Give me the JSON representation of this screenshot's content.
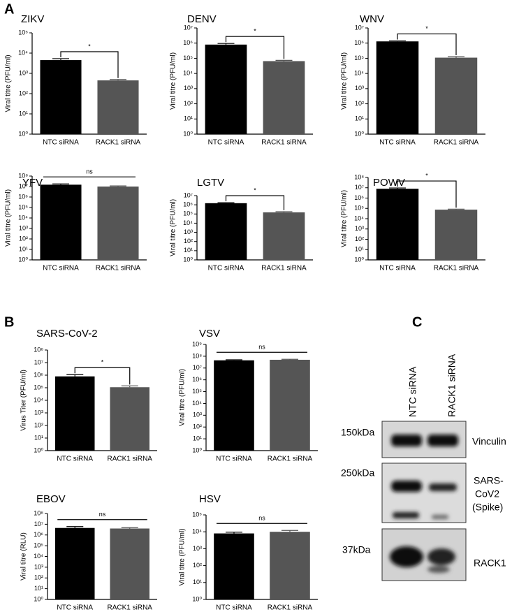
{
  "panel_labels": [
    "A",
    "B",
    "C"
  ],
  "blot": {
    "lanes": [
      "NTC siRNA",
      "RACK1 siRNA"
    ],
    "markers": [
      "150kDa",
      "250kDa",
      "37kDa"
    ],
    "proteins": [
      [
        "Vinculin"
      ],
      [
        "SARS-",
        "CoV2",
        "(Spike)"
      ],
      [
        "RACK1"
      ]
    ]
  },
  "chart_data": [
    {
      "type": "bar",
      "title": "ZIKV",
      "y_label": "Viral titre (PFU/ml)",
      "categories": [
        "NTC siRNA",
        "RACK1 siRNA"
      ],
      "values": [
        4500,
        450
      ],
      "errors": [
        800,
        50
      ],
      "colors": [
        "#000000",
        "#555555"
      ],
      "annotation": "*",
      "log_scale": true,
      "ylim": [
        1,
        100000
      ],
      "yticks": [
        {
          "value": 1,
          "label": "10⁰"
        },
        {
          "value": 10,
          "label": "10¹"
        },
        {
          "value": 100,
          "label": "10²"
        },
        {
          "value": 1000,
          "label": "10³"
        },
        {
          "value": 10000,
          "label": "10⁴"
        },
        {
          "value": 100000,
          "label": "10⁵"
        }
      ]
    },
    {
      "type": "bar",
      "title": "DENV",
      "y_label": "Viral titre (PFU/ml)",
      "categories": [
        "NTC siRNA",
        "RACK1 siRNA"
      ],
      "values": [
        800000,
        65000
      ],
      "errors": [
        150000,
        8000
      ],
      "colors": [
        "#000000",
        "#555555"
      ],
      "annotation": "*",
      "log_scale": true,
      "ylim": [
        1,
        10000000
      ],
      "yticks": [
        {
          "value": 1,
          "label": "10⁰"
        },
        {
          "value": 10,
          "label": "10¹"
        },
        {
          "value": 100,
          "label": "10²"
        },
        {
          "value": 1000,
          "label": "10³"
        },
        {
          "value": 10000,
          "label": "10⁴"
        },
        {
          "value": 100000,
          "label": "10⁵"
        },
        {
          "value": 1000000,
          "label": "10⁶"
        },
        {
          "value": 10000000,
          "label": "10⁷"
        }
      ]
    },
    {
      "type": "bar",
      "title": "WNV",
      "y_label": "Viral titre (PFU/ml)",
      "categories": [
        "NTC siRNA",
        "RACK1 siRNA"
      ],
      "values": [
        1300000,
        110000
      ],
      "errors": [
        100000,
        20000
      ],
      "colors": [
        "#000000",
        "#555555"
      ],
      "annotation": "*",
      "log_scale": true,
      "ylim": [
        1,
        10000000
      ],
      "yticks": [
        {
          "value": 1,
          "label": "10⁰"
        },
        {
          "value": 10,
          "label": "10¹"
        },
        {
          "value": 100,
          "label": "10²"
        },
        {
          "value": 1000,
          "label": "10³"
        },
        {
          "value": 10000,
          "label": "10⁴"
        },
        {
          "value": 100000,
          "label": "10⁵"
        },
        {
          "value": 1000000,
          "label": "10⁶"
        },
        {
          "value": 10000000,
          "label": "10⁷"
        }
      ]
    },
    {
      "type": "bar",
      "title": "YFV",
      "y_label": "Viral titre (PFU/ml)",
      "categories": [
        "NTC siRNA",
        "RACK1 siRNA"
      ],
      "values": [
        15000000,
        10000000
      ],
      "errors": [
        3000000,
        1500000
      ],
      "colors": [
        "#000000",
        "#555555"
      ],
      "annotation": "ns",
      "log_scale": true,
      "ylim": [
        1,
        100000000
      ],
      "yticks": [
        {
          "value": 1,
          "label": "10⁰"
        },
        {
          "value": 10,
          "label": "10¹"
        },
        {
          "value": 100,
          "label": "10²"
        },
        {
          "value": 1000,
          "label": "10³"
        },
        {
          "value": 10000,
          "label": "10⁴"
        },
        {
          "value": 100000,
          "label": "10⁵"
        },
        {
          "value": 1000000,
          "label": "10⁶"
        },
        {
          "value": 10000000,
          "label": "10⁷"
        },
        {
          "value": 100000000,
          "label": "10⁸"
        }
      ]
    },
    {
      "type": "bar",
      "title": "LGTV",
      "y_label": "Viral titre (PFU/ml)",
      "categories": [
        "NTC siRNA",
        "RACK1 siRNA"
      ],
      "values": [
        1500000,
        150000
      ],
      "errors": [
        200000,
        30000
      ],
      "colors": [
        "#000000",
        "#555555"
      ],
      "annotation": "*",
      "log_scale": true,
      "ylim": [
        1,
        10000000
      ],
      "yticks": [
        {
          "value": 1,
          "label": "10⁰"
        },
        {
          "value": 10,
          "label": "10¹"
        },
        {
          "value": 100,
          "label": "10²"
        },
        {
          "value": 1000,
          "label": "10³"
        },
        {
          "value": 10000,
          "label": "10⁴"
        },
        {
          "value": 100000,
          "label": "10⁵"
        },
        {
          "value": 1000000,
          "label": "10⁶"
        },
        {
          "value": 10000000,
          "label": "10⁷"
        }
      ]
    },
    {
      "type": "bar",
      "title": "POWV",
      "y_label": "Viral titre (PFU/ml)",
      "categories": [
        "NTC siRNA",
        "RACK1 siRNA"
      ],
      "values": [
        8000000,
        75000
      ],
      "errors": [
        1500000,
        10000
      ],
      "colors": [
        "#000000",
        "#555555"
      ],
      "annotation": "*",
      "log_scale": true,
      "ylim": [
        1,
        100000000
      ],
      "yticks": [
        {
          "value": 1,
          "label": "10⁰"
        },
        {
          "value": 10,
          "label": "10¹"
        },
        {
          "value": 100,
          "label": "10²"
        },
        {
          "value": 1000,
          "label": "10³"
        },
        {
          "value": 10000,
          "label": "10⁴"
        },
        {
          "value": 100000,
          "label": "10⁵"
        },
        {
          "value": 1000000,
          "label": "10⁶"
        },
        {
          "value": 10000000,
          "label": "10⁷"
        },
        {
          "value": 100000000,
          "label": "10⁸"
        }
      ]
    },
    {
      "type": "bar",
      "title": "SARS-CoV-2",
      "y_label": "Virus Titer (PFU/ml)",
      "categories": [
        "NTC siRNA",
        "RACK1 siRNA"
      ],
      "values": [
        800000,
        110000
      ],
      "errors": [
        300000,
        30000
      ],
      "colors": [
        "#000000",
        "#555555"
      ],
      "annotation": "*",
      "log_scale": true,
      "ylim": [
        1,
        100000000
      ],
      "yticks": [
        {
          "value": 1,
          "label": "10⁰"
        },
        {
          "value": 10,
          "label": "10¹"
        },
        {
          "value": 100,
          "label": "10²"
        },
        {
          "value": 1000,
          "label": "10³"
        },
        {
          "value": 10000,
          "label": "10⁴"
        },
        {
          "value": 100000,
          "label": "10⁵"
        },
        {
          "value": 1000000,
          "label": "10⁶"
        },
        {
          "value": 10000000,
          "label": "10⁷"
        },
        {
          "value": 100000000,
          "label": "10⁸"
        }
      ]
    },
    {
      "type": "bar",
      "title": "VSV",
      "y_label": "Viral titre (PFU/ml)",
      "categories": [
        "NTC siRNA",
        "RACK1 siRNA"
      ],
      "values": [
        45000000,
        50000000
      ],
      "errors": [
        5000000,
        5000000
      ],
      "colors": [
        "#000000",
        "#555555"
      ],
      "annotation": "ns",
      "log_scale": true,
      "ylim": [
        1,
        1000000000
      ],
      "yticks": [
        {
          "value": 1,
          "label": "10⁰"
        },
        {
          "value": 10,
          "label": "10¹"
        },
        {
          "value": 100,
          "label": "10²"
        },
        {
          "value": 1000,
          "label": "10³"
        },
        {
          "value": 10000,
          "label": "10⁴"
        },
        {
          "value": 100000,
          "label": "10⁵"
        },
        {
          "value": 1000000,
          "label": "10⁶"
        },
        {
          "value": 10000000,
          "label": "10⁷"
        },
        {
          "value": 100000000,
          "label": "10⁸"
        },
        {
          "value": 1000000000,
          "label": "10⁹"
        }
      ]
    },
    {
      "type": "bar",
      "title": "EBOV",
      "y_label": "Viral titre (RLU)",
      "categories": [
        "NTC siRNA",
        "RACK1 siRNA"
      ],
      "values": [
        4500000,
        4000000
      ],
      "errors": [
        1500000,
        800000
      ],
      "colors": [
        "#000000",
        "#555555"
      ],
      "annotation": "ns",
      "log_scale": true,
      "ylim": [
        1,
        100000000
      ],
      "yticks": [
        {
          "value": 1,
          "label": "10⁰"
        },
        {
          "value": 10,
          "label": "10¹"
        },
        {
          "value": 100,
          "label": "10²"
        },
        {
          "value": 1000,
          "label": "10³"
        },
        {
          "value": 10000,
          "label": "10⁴"
        },
        {
          "value": 100000,
          "label": "10⁵"
        },
        {
          "value": 1000000,
          "label": "10⁶"
        },
        {
          "value": 10000000,
          "label": "10⁷"
        },
        {
          "value": 100000000,
          "label": "10⁸"
        }
      ]
    },
    {
      "type": "bar",
      "title": "HSV",
      "y_label": "Viral titre (PFU/ml)",
      "categories": [
        "NTC siRNA",
        "RACK1 siRNA"
      ],
      "values": [
        8000,
        10000
      ],
      "errors": [
        1500,
        2000
      ],
      "colors": [
        "#000000",
        "#555555"
      ],
      "annotation": "ns",
      "log_scale": true,
      "ylim": [
        1,
        100000
      ],
      "yticks": [
        {
          "value": 1,
          "label": "10⁰"
        },
        {
          "value": 10,
          "label": "10¹"
        },
        {
          "value": 100,
          "label": "10²"
        },
        {
          "value": 1000,
          "label": "10³"
        },
        {
          "value": 10000,
          "label": "10⁴"
        },
        {
          "value": 100000,
          "label": "10⁵"
        }
      ]
    }
  ]
}
